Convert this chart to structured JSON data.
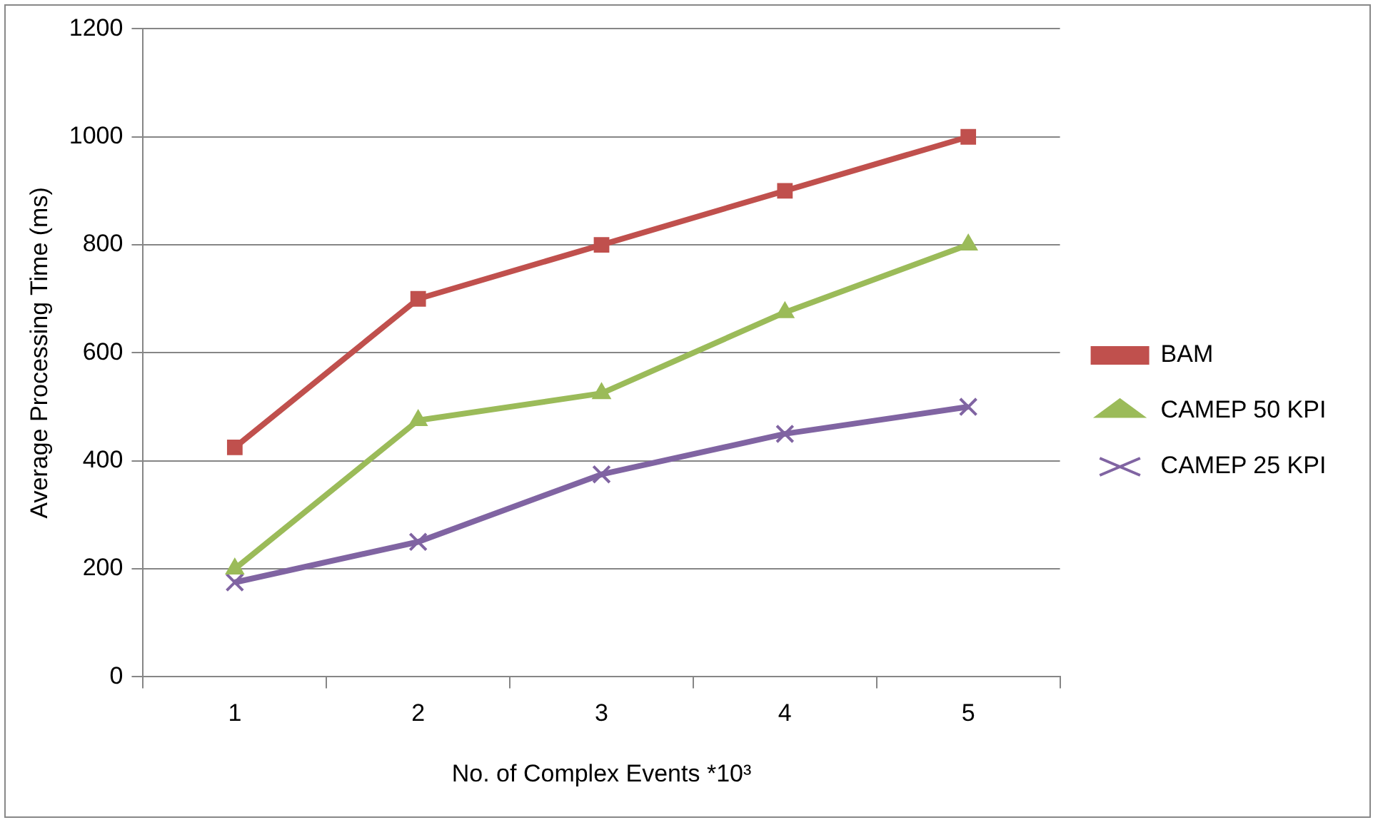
{
  "chart_data": {
    "type": "line",
    "xlabel": "No. of Complex Events *10³",
    "ylabel": "Average Processing Time (ms)",
    "categories": [
      "1",
      "2",
      "3",
      "4",
      "5"
    ],
    "series": [
      {
        "name": "BAM",
        "color": "#c0504d",
        "marker": "square",
        "values": [
          425,
          700,
          800,
          900,
          1000
        ]
      },
      {
        "name": "CAMEP 50 KPI",
        "color": "#9bbb59",
        "marker": "triangle",
        "values": [
          200,
          475,
          525,
          675,
          800
        ]
      },
      {
        "name": "CAMEP 25 KPI",
        "color": "#8064a2",
        "marker": "cross",
        "values": [
          175,
          250,
          375,
          450,
          500
        ]
      }
    ],
    "ylim": [
      0,
      1200
    ],
    "yticks": [
      0,
      200,
      400,
      600,
      800,
      1000,
      1200
    ],
    "grid": "y",
    "legend": "right"
  }
}
